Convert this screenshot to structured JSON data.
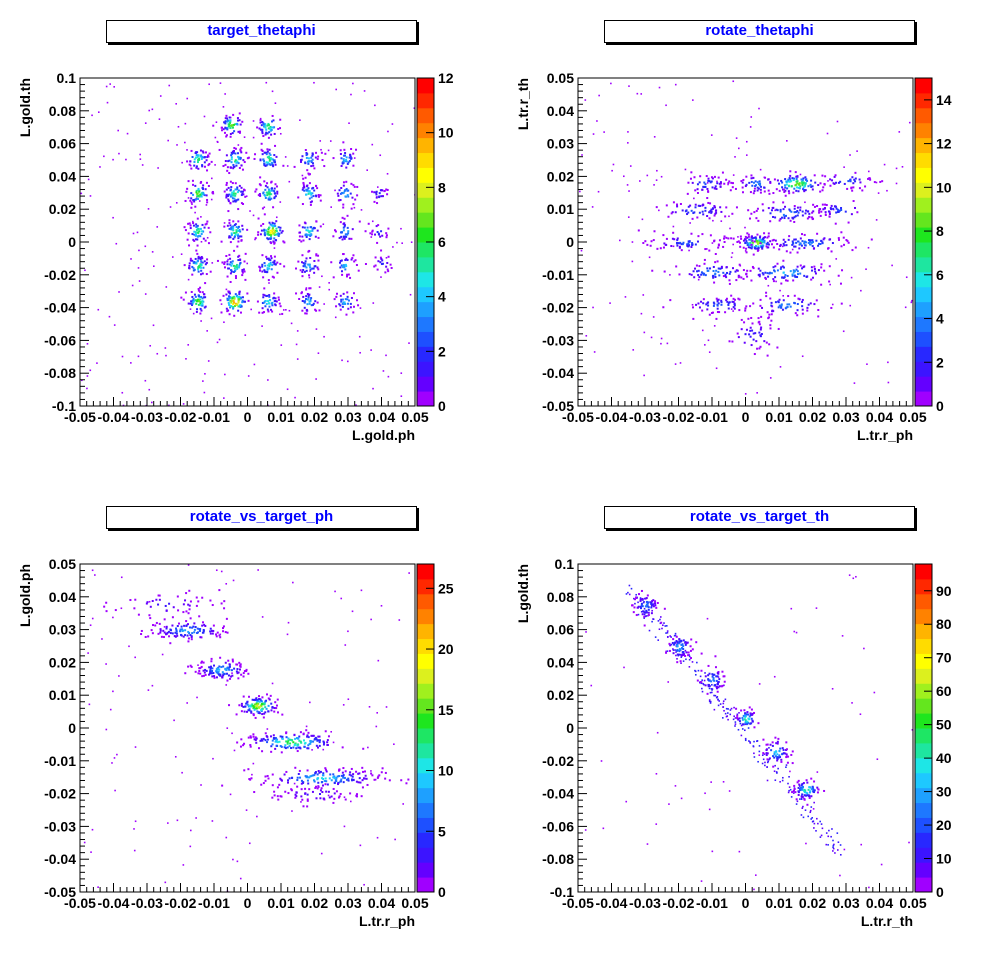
{
  "palette": [
    "#a000ff",
    "#6400ff",
    "#3c14ff",
    "#2828ff",
    "#1e50ff",
    "#1e78ff",
    "#1ea0ff",
    "#1ec8ff",
    "#1ee6e6",
    "#1ee6a0",
    "#1ee664",
    "#1ee61e",
    "#64e61e",
    "#a0f01e",
    "#dcf01e",
    "#ffff00",
    "#ffdc00",
    "#ffb400",
    "#ff8200",
    "#ff5a00",
    "#ff2800",
    "#ff0000"
  ],
  "chart_data": [
    {
      "type": "heatmap",
      "title": "target_thetaphi",
      "xlabel": "L.gold.ph",
      "ylabel": "L.gold.th",
      "xlim": [
        -0.05,
        0.05
      ],
      "ylim": [
        -0.1,
        0.1
      ],
      "xticks": [
        "-0.05",
        "-0.04",
        "-0.03",
        "-0.02",
        "-0.01",
        "0",
        "0.01",
        "0.02",
        "0.03",
        "0.04",
        "0.05"
      ],
      "yticks": [
        "-0.1",
        "-0.08",
        "-0.06",
        "-0.04",
        "-0.02",
        "0",
        "0.02",
        "0.04",
        "0.06",
        "0.08",
        "0.1"
      ],
      "zmax": 12,
      "zticks": [
        "0",
        "2",
        "4",
        "6",
        "8",
        "10",
        "12"
      ],
      "zvals": [
        0,
        2,
        4,
        6,
        8,
        10,
        12
      ],
      "noise": 0.0006,
      "clusters": [
        {
          "x": -0.005,
          "y": 0.072,
          "w": 7,
          "sx": 0.0017,
          "sy": 0.0035,
          "n": 55
        },
        {
          "x": 0.006,
          "y": 0.071,
          "w": 6,
          "sx": 0.0017,
          "sy": 0.0035,
          "n": 45
        },
        {
          "x": -0.015,
          "y": 0.051,
          "w": 6,
          "sx": 0.0017,
          "sy": 0.0035,
          "n": 50
        },
        {
          "x": -0.004,
          "y": 0.051,
          "w": 6,
          "sx": 0.0017,
          "sy": 0.0035,
          "n": 55
        },
        {
          "x": 0.006,
          "y": 0.051,
          "w": 6,
          "sx": 0.0017,
          "sy": 0.0035,
          "n": 55
        },
        {
          "x": 0.018,
          "y": 0.051,
          "w": 4,
          "sx": 0.0017,
          "sy": 0.0035,
          "n": 40
        },
        {
          "x": 0.029,
          "y": 0.051,
          "w": 4,
          "sx": 0.0017,
          "sy": 0.0035,
          "n": 35
        },
        {
          "x": -0.015,
          "y": 0.03,
          "w": 7,
          "sx": 0.0017,
          "sy": 0.0035,
          "n": 60
        },
        {
          "x": -0.004,
          "y": 0.03,
          "w": 6,
          "sx": 0.0017,
          "sy": 0.0035,
          "n": 60
        },
        {
          "x": 0.006,
          "y": 0.03,
          "w": 6,
          "sx": 0.0017,
          "sy": 0.0035,
          "n": 55
        },
        {
          "x": 0.018,
          "y": 0.03,
          "w": 5,
          "sx": 0.0017,
          "sy": 0.0035,
          "n": 45
        },
        {
          "x": 0.029,
          "y": 0.03,
          "w": 4,
          "sx": 0.0017,
          "sy": 0.0035,
          "n": 35
        },
        {
          "x": 0.039,
          "y": 0.03,
          "w": 2,
          "sx": 0.0015,
          "sy": 0.003,
          "n": 20
        },
        {
          "x": -0.015,
          "y": 0.007,
          "w": 6,
          "sx": 0.0017,
          "sy": 0.0035,
          "n": 55
        },
        {
          "x": -0.004,
          "y": 0.007,
          "w": 6,
          "sx": 0.0017,
          "sy": 0.0035,
          "n": 55
        },
        {
          "x": 0.007,
          "y": 0.007,
          "w": 9,
          "sx": 0.0019,
          "sy": 0.0037,
          "n": 80
        },
        {
          "x": 0.018,
          "y": 0.007,
          "w": 5,
          "sx": 0.0017,
          "sy": 0.0035,
          "n": 45
        },
        {
          "x": 0.029,
          "y": 0.007,
          "w": 4,
          "sx": 0.0017,
          "sy": 0.0035,
          "n": 35
        },
        {
          "x": 0.039,
          "y": 0.007,
          "w": 2,
          "sx": 0.0015,
          "sy": 0.003,
          "n": 20
        },
        {
          "x": -0.015,
          "y": -0.014,
          "w": 6,
          "sx": 0.0017,
          "sy": 0.0035,
          "n": 55
        },
        {
          "x": -0.004,
          "y": -0.014,
          "w": 6,
          "sx": 0.0017,
          "sy": 0.0035,
          "n": 55
        },
        {
          "x": 0.006,
          "y": -0.014,
          "w": 5,
          "sx": 0.0017,
          "sy": 0.0035,
          "n": 50
        },
        {
          "x": 0.018,
          "y": -0.014,
          "w": 4,
          "sx": 0.0017,
          "sy": 0.0035,
          "n": 40
        },
        {
          "x": 0.029,
          "y": -0.014,
          "w": 4,
          "sx": 0.0017,
          "sy": 0.0035,
          "n": 35
        },
        {
          "x": 0.04,
          "y": -0.013,
          "w": 2,
          "sx": 0.0015,
          "sy": 0.003,
          "n": 20
        },
        {
          "x": -0.015,
          "y": -0.036,
          "w": 7,
          "sx": 0.0017,
          "sy": 0.0035,
          "n": 60
        },
        {
          "x": -0.004,
          "y": -0.036,
          "w": 10,
          "sx": 0.0019,
          "sy": 0.0037,
          "n": 85
        },
        {
          "x": 0.006,
          "y": -0.036,
          "w": 5,
          "sx": 0.0017,
          "sy": 0.0035,
          "n": 45
        },
        {
          "x": 0.018,
          "y": -0.036,
          "w": 4,
          "sx": 0.0017,
          "sy": 0.0035,
          "n": 40
        },
        {
          "x": 0.029,
          "y": -0.036,
          "w": 4,
          "sx": 0.0017,
          "sy": 0.0035,
          "n": 35
        }
      ]
    },
    {
      "type": "heatmap",
      "title": "rotate_thetaphi",
      "xlabel": "L.tr.r_ph",
      "ylabel": "L.tr.r_th",
      "xlim": [
        -0.05,
        0.05
      ],
      "ylim": [
        -0.05,
        0.05
      ],
      "xticks": [
        "-0.05",
        "-0.04",
        "-0.03",
        "-0.02",
        "-0.01",
        "0",
        "0.01",
        "0.02",
        "0.03",
        "0.04",
        "0.05"
      ],
      "yticks": [
        "-0.05",
        "-0.04",
        "-0.03",
        "-0.02",
        "-0.01",
        "0",
        "0.01",
        "0.02",
        "0.03",
        "0.04",
        "0.05"
      ],
      "zmax": 15,
      "zticks": [
        "0",
        "2",
        "4",
        "6",
        "8",
        "10",
        "12",
        "14"
      ],
      "zvals": [
        0,
        2,
        4,
        6,
        8,
        10,
        12,
        14
      ],
      "noise": 0.0004,
      "clusters": [
        {
          "x": 0.003,
          "y": 0.0,
          "w": 10,
          "sx": 0.0025,
          "sy": 0.0012,
          "n": 110
        },
        {
          "x": 0.015,
          "y": 0.018,
          "w": 9,
          "sx": 0.004,
          "sy": 0.0015,
          "n": 100
        },
        {
          "x": -0.012,
          "y": 0.018,
          "w": 3,
          "sx": 0.004,
          "sy": 0.0015,
          "n": 50
        },
        {
          "x": 0.003,
          "y": 0.018,
          "w": 4,
          "sx": 0.003,
          "sy": 0.0015,
          "n": 45
        },
        {
          "x": 0.03,
          "y": 0.019,
          "w": 3,
          "sx": 0.004,
          "sy": 0.0015,
          "n": 40
        },
        {
          "x": -0.015,
          "y": 0.01,
          "w": 3,
          "sx": 0.006,
          "sy": 0.0015,
          "n": 60
        },
        {
          "x": 0.012,
          "y": 0.009,
          "w": 4,
          "sx": 0.006,
          "sy": 0.0015,
          "n": 70
        },
        {
          "x": 0.028,
          "y": 0.01,
          "w": 3,
          "sx": 0.004,
          "sy": 0.0015,
          "n": 40
        },
        {
          "x": -0.018,
          "y": 0.0,
          "w": 3,
          "sx": 0.006,
          "sy": 0.0012,
          "n": 70
        },
        {
          "x": 0.018,
          "y": 0.0,
          "w": 4,
          "sx": 0.007,
          "sy": 0.0012,
          "n": 90
        },
        {
          "x": -0.01,
          "y": -0.009,
          "w": 4,
          "sx": 0.006,
          "sy": 0.0015,
          "n": 70
        },
        {
          "x": 0.012,
          "y": -0.009,
          "w": 5,
          "sx": 0.007,
          "sy": 0.0015,
          "n": 90
        },
        {
          "x": -0.008,
          "y": -0.019,
          "w": 3,
          "sx": 0.006,
          "sy": 0.0015,
          "n": 60
        },
        {
          "x": 0.012,
          "y": -0.019,
          "w": 4,
          "sx": 0.006,
          "sy": 0.0015,
          "n": 60
        },
        {
          "x": 0.002,
          "y": -0.028,
          "w": 2,
          "sx": 0.004,
          "sy": 0.003,
          "n": 50
        }
      ]
    },
    {
      "type": "heatmap",
      "title": "rotate_vs_target_ph",
      "xlabel": "L.tr.r_ph",
      "ylabel": "L.gold.ph",
      "xlim": [
        -0.05,
        0.05
      ],
      "ylim": [
        -0.05,
        0.05
      ],
      "xticks": [
        "-0.05",
        "-0.04",
        "-0.03",
        "-0.02",
        "-0.01",
        "0",
        "0.01",
        "0.02",
        "0.03",
        "0.04",
        "0.05"
      ],
      "yticks": [
        "-0.05",
        "-0.04",
        "-0.03",
        "-0.02",
        "-0.01",
        "0",
        "0.01",
        "0.02",
        "0.03",
        "0.04",
        "0.05"
      ],
      "zmax": 27,
      "zticks": [
        "0",
        "5",
        "10",
        "15",
        "20",
        "25"
      ],
      "zvals": [
        0,
        5,
        10,
        15,
        20,
        25
      ],
      "noise": 0.0003,
      "clusters": [
        {
          "x": -0.025,
          "y": 0.038,
          "w": 3,
          "sx": 0.008,
          "sy": 0.002,
          "n": 50
        },
        {
          "x": -0.018,
          "y": 0.03,
          "w": 8,
          "sx": 0.006,
          "sy": 0.0015,
          "n": 110
        },
        {
          "x": -0.008,
          "y": 0.018,
          "w": 9,
          "sx": 0.004,
          "sy": 0.0015,
          "n": 110
        },
        {
          "x": 0.003,
          "y": 0.007,
          "w": 18,
          "sx": 0.003,
          "sy": 0.0015,
          "n": 120
        },
        {
          "x": 0.013,
          "y": -0.004,
          "w": 14,
          "sx": 0.007,
          "sy": 0.0015,
          "n": 150
        },
        {
          "x": 0.022,
          "y": -0.015,
          "w": 10,
          "sx": 0.009,
          "sy": 0.0015,
          "n": 160
        },
        {
          "x": 0.02,
          "y": -0.02,
          "w": 3,
          "sx": 0.007,
          "sy": 0.0015,
          "n": 60
        }
      ]
    },
    {
      "type": "heatmap",
      "title": "rotate_vs_target_th",
      "xlabel": "L.tr.r_th",
      "ylabel": "L.gold.th",
      "xlim": [
        -0.05,
        0.05
      ],
      "ylim": [
        -0.1,
        0.1
      ],
      "xticks": [
        "-0.05",
        "-0.04",
        "-0.03",
        "-0.02",
        "-0.01",
        "0",
        "0.01",
        "0.02",
        "0.03",
        "0.04",
        "0.05"
      ],
      "yticks": [
        "-0.1",
        "-0.08",
        "-0.06",
        "-0.04",
        "-0.02",
        "0",
        "0.02",
        "0.04",
        "0.06",
        "0.08",
        "0.1"
      ],
      "zmax": 98,
      "zticks": [
        "0",
        "10",
        "20",
        "30",
        "40",
        "50",
        "60",
        "70",
        "80",
        "90"
      ],
      "zvals": [
        0,
        10,
        20,
        30,
        40,
        50,
        60,
        70,
        80,
        90
      ],
      "noise": 0.00015,
      "clusters": [
        {
          "x": -0.03,
          "y": 0.075,
          "w": 25,
          "sx": 0.002,
          "sy": 0.004,
          "n": 60
        },
        {
          "x": -0.02,
          "y": 0.05,
          "w": 30,
          "sx": 0.002,
          "sy": 0.004,
          "n": 60
        },
        {
          "x": -0.01,
          "y": 0.03,
          "w": 25,
          "sx": 0.002,
          "sy": 0.004,
          "n": 50
        },
        {
          "x": 0.0,
          "y": 0.006,
          "w": 45,
          "sx": 0.0015,
          "sy": 0.003,
          "n": 50
        },
        {
          "x": 0.009,
          "y": -0.014,
          "w": 35,
          "sx": 0.002,
          "sy": 0.004,
          "n": 60
        },
        {
          "x": 0.018,
          "y": -0.037,
          "w": 45,
          "sx": 0.002,
          "sy": 0.003,
          "n": 70
        }
      ],
      "lines": [
        {
          "x0": -0.035,
          "y0": 0.085,
          "x1": 0.028,
          "y1": -0.075,
          "n": 260
        }
      ]
    }
  ]
}
